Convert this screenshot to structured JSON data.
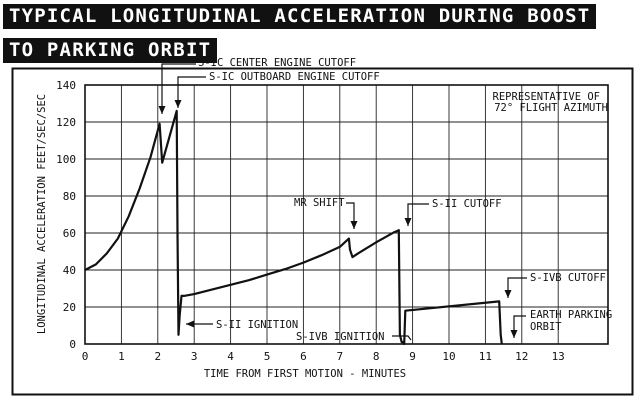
{
  "title": {
    "line1": "TYPICAL LONGITUDINAL ACCELERATION DURING BOOST",
    "line2": "TO PARKING ORBIT"
  },
  "chart_data": {
    "type": "line",
    "xlabel": "TIME FROM FIRST MOTION - MINUTES",
    "ylabel": "LONGITUDINAL ACCELERATION FEET/SEC/SEC",
    "xlim": [
      0,
      14
    ],
    "ylim": [
      0,
      140
    ],
    "x_ticks": [
      0,
      1,
      2,
      3,
      4,
      5,
      6,
      7,
      8,
      9,
      10,
      11,
      12,
      13
    ],
    "y_ticks": [
      0,
      20,
      40,
      60,
      80,
      100,
      120,
      140
    ],
    "x_tick_labels": [
      "0",
      "1",
      "2",
      "3",
      "4",
      "5",
      "6",
      "7",
      "8",
      "9",
      "10",
      "11",
      "12",
      "13"
    ],
    "y_tick_labels": [
      "0",
      "20",
      "40",
      "60",
      "80",
      "100",
      "120",
      "140"
    ],
    "grid": true,
    "note": [
      "REPRESENTATIVE OF",
      "72° FLIGHT AZIMUTH"
    ],
    "series": [
      {
        "x": [
          0,
          0.3,
          0.6,
          0.9,
          1.2,
          1.5,
          1.8,
          2.05,
          2.12,
          2.52,
          2.54,
          2.57,
          2.6,
          2.65,
          2.72,
          3,
          3.5,
          4,
          4.5,
          5,
          5.5,
          6,
          6.5,
          7,
          7.25,
          7.28,
          7.35,
          7.5,
          8,
          8.5,
          8.62,
          8.65,
          8.7,
          8.75,
          8.77,
          8.8,
          11.38,
          11.42,
          11.45
        ],
        "y": [
          40,
          43,
          49,
          57,
          69,
          84,
          101,
          119,
          98,
          126,
          60,
          5,
          15,
          26,
          26,
          27,
          29.5,
          32,
          34.5,
          37.5,
          40.5,
          44,
          48,
          52.5,
          57,
          51,
          47,
          49,
          55,
          60.5,
          61.5,
          5,
          1,
          1,
          0,
          18,
          23,
          5,
          0
        ]
      }
    ],
    "annotations": [
      {
        "text": "S-IC CENTER ENGINE CUTOFF",
        "x": 2.12,
        "y": 120
      },
      {
        "text": "S-IC OUTBOARD ENGINE CUTOFF",
        "x": 2.52,
        "y": 126
      },
      {
        "text": "MR SHIFT",
        "x": 7.25,
        "y": 57
      },
      {
        "text": "S-II CUTOFF",
        "x": 8.62,
        "y": 61.5
      },
      {
        "text": "S-II IGNITION",
        "x": 2.57,
        "y": 10
      },
      {
        "text": "S-IVB IGNITION",
        "x": 8.75,
        "y": 0
      },
      {
        "text": "S-IVB CUTOFF",
        "x": 11.38,
        "y": 23
      },
      {
        "text": "EARTH PARKING",
        "x": 11.5,
        "y": 0
      },
      {
        "text": "ORBIT",
        "x": 11.5,
        "y": 0
      }
    ]
  }
}
